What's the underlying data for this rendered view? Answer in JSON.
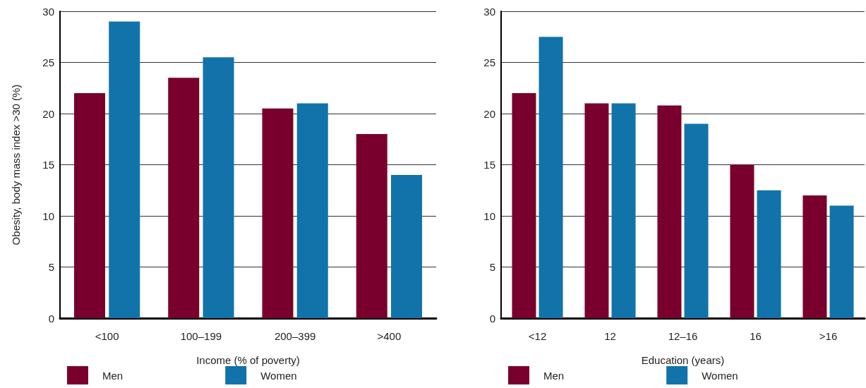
{
  "chart_data": [
    {
      "type": "bar",
      "xlabel": "Income (% of poverty)",
      "ylabel": "Obesity, body mass index >30 (%)",
      "categories": [
        "<100",
        "100–199",
        "200–399",
        ">400"
      ],
      "series": [
        {
          "name": "Men",
          "color": "#79002d",
          "values": [
            22,
            23.5,
            20.5,
            18
          ]
        },
        {
          "name": "Women",
          "color": "#1173aa",
          "values": [
            29,
            25.5,
            21,
            14
          ]
        }
      ],
      "ylim": [
        0,
        30
      ],
      "yticks": [
        0,
        5,
        10,
        15,
        20,
        25,
        30
      ],
      "grid": "y",
      "legend": "bottom left"
    },
    {
      "type": "bar",
      "xlabel": "Education (years)",
      "categories": [
        "<12",
        "12",
        "12–16",
        "16",
        ">16"
      ],
      "series": [
        {
          "name": "Men",
          "color": "#79002d",
          "values": [
            22,
            21,
            20.8,
            15,
            12
          ]
        },
        {
          "name": "Women",
          "color": "#1173aa",
          "values": [
            27.5,
            21,
            19,
            12.5,
            11
          ]
        }
      ],
      "ylim": [
        0,
        30
      ],
      "yticks": [
        0,
        5,
        10,
        15,
        20,
        25,
        30
      ],
      "grid": "y",
      "legend": "bottom left"
    }
  ]
}
